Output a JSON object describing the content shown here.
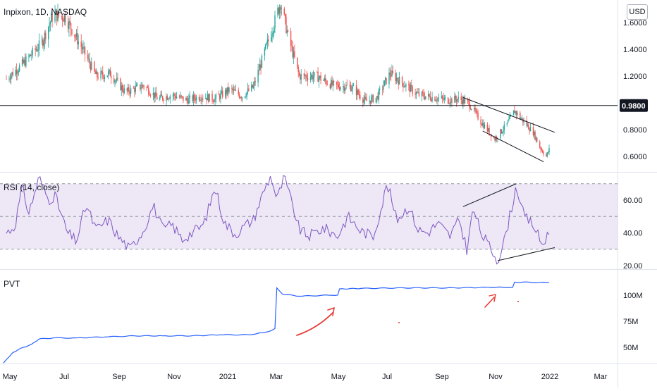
{
  "header": {
    "symbol": "Inpixon, 1D, NASDAQ",
    "currency": "USD"
  },
  "colors": {
    "up": "#26a69a",
    "down": "#ef5350",
    "rsi": "#7e57c2",
    "rsi_band": "#ede7f6",
    "pvt": "#2962ff",
    "axis_text": "#131722",
    "annotation_red": "#e53935"
  },
  "chart_data": [
    {
      "type": "candlestick",
      "title": "Inpixon, 1D, NASDAQ",
      "ylim": [
        0.5,
        1.7
      ],
      "y_ticks": [
        "1.6000",
        "1.4000",
        "1.2000",
        "0.8000",
        "0.6000"
      ],
      "horizontal_line": {
        "value": 0.98,
        "label": "0.9800"
      },
      "trendlines": [
        {
          "points": [
            [
              "2021-09-01",
              1.04
            ],
            [
              "2021-12-08",
              0.78
            ]
          ]
        },
        {
          "points": [
            [
              "2021-09-22",
              0.79
            ],
            [
              "2021-11-26",
              0.56
            ]
          ]
        }
      ],
      "anchors": [
        [
          "2020-05-01",
          1.18
        ],
        [
          "2020-05-20",
          1.3
        ],
        [
          "2020-06-08",
          1.45
        ],
        [
          "2020-06-20",
          1.66
        ],
        [
          "2020-07-03",
          1.64
        ],
        [
          "2020-07-20",
          1.42
        ],
        [
          "2020-08-05",
          1.2
        ],
        [
          "2020-08-20",
          1.22
        ],
        [
          "2020-09-05",
          1.08
        ],
        [
          "2020-09-25",
          1.13
        ],
        [
          "2020-10-10",
          1.03
        ],
        [
          "2020-10-25",
          1.06
        ],
        [
          "2020-11-10",
          1.02
        ],
        [
          "2020-11-25",
          1.05
        ],
        [
          "2020-12-10",
          1.03
        ],
        [
          "2020-12-26",
          1.1
        ],
        [
          "2021-01-08",
          1.05
        ],
        [
          "2021-01-20",
          1.12
        ],
        [
          "2021-02-01",
          1.38
        ],
        [
          "2021-02-10",
          1.57
        ],
        [
          "2021-02-18",
          1.75
        ],
        [
          "2021-02-26",
          1.5
        ],
        [
          "2021-03-10",
          1.2
        ],
        [
          "2021-03-28",
          1.2
        ],
        [
          "2021-04-15",
          1.13
        ],
        [
          "2021-05-05",
          1.12
        ],
        [
          "2021-05-20",
          1.01
        ],
        [
          "2021-06-01",
          1.04
        ],
        [
          "2021-06-15",
          1.22
        ],
        [
          "2021-06-28",
          1.15
        ],
        [
          "2021-07-15",
          1.06
        ],
        [
          "2021-08-01",
          1.04
        ],
        [
          "2021-08-15",
          1.02
        ],
        [
          "2021-08-28",
          1.03
        ],
        [
          "2021-09-08",
          0.99
        ],
        [
          "2021-09-20",
          0.86
        ],
        [
          "2021-10-05",
          0.73
        ],
        [
          "2021-10-18",
          0.84
        ],
        [
          "2021-10-26",
          0.94
        ],
        [
          "2021-11-05",
          0.86
        ],
        [
          "2021-11-15",
          0.78
        ],
        [
          "2021-11-22",
          0.67
        ],
        [
          "2021-11-29",
          0.6
        ],
        [
          "2021-12-02",
          0.65
        ]
      ]
    },
    {
      "type": "line",
      "title": "RSI (14, close)",
      "ylim": [
        20,
        75
      ],
      "y_ticks": [
        "60.00",
        "40.00",
        "20.00"
      ],
      "bands": {
        "upper": 70,
        "middle": 50,
        "lower": 30
      },
      "trendlines": [
        {
          "points": [
            [
              "2021-09-01",
              56
            ],
            [
              "2021-10-28",
              70
            ]
          ]
        },
        {
          "points": [
            [
              "2021-10-08",
              23
            ],
            [
              "2021-12-08",
              31
            ]
          ]
        }
      ],
      "anchors": [
        [
          "2020-05-01",
          40
        ],
        [
          "2020-05-10",
          44
        ],
        [
          "2020-05-18",
          68
        ],
        [
          "2020-05-25",
          52
        ],
        [
          "2020-06-05",
          74
        ],
        [
          "2020-06-15",
          60
        ],
        [
          "2020-06-22",
          63
        ],
        [
          "2020-07-05",
          40
        ],
        [
          "2020-07-15",
          35
        ],
        [
          "2020-07-25",
          57
        ],
        [
          "2020-08-05",
          42
        ],
        [
          "2020-08-18",
          48
        ],
        [
          "2020-08-28",
          38
        ],
        [
          "2020-09-10",
          30
        ],
        [
          "2020-09-25",
          42
        ],
        [
          "2020-10-05",
          57
        ],
        [
          "2020-10-15",
          42
        ],
        [
          "2020-10-25",
          45
        ],
        [
          "2020-11-05",
          36
        ],
        [
          "2020-11-15",
          40
        ],
        [
          "2020-11-28",
          45
        ],
        [
          "2020-12-10",
          68
        ],
        [
          "2020-12-20",
          46
        ],
        [
          "2021-01-01",
          39
        ],
        [
          "2021-01-10",
          44
        ],
        [
          "2021-01-20",
          48
        ],
        [
          "2021-02-01",
          67
        ],
        [
          "2021-02-08",
          75
        ],
        [
          "2021-02-14",
          60
        ],
        [
          "2021-02-22",
          74
        ],
        [
          "2021-03-01",
          60
        ],
        [
          "2021-03-10",
          42
        ],
        [
          "2021-03-20",
          38
        ],
        [
          "2021-04-05",
          43
        ],
        [
          "2021-04-20",
          38
        ],
        [
          "2021-05-01",
          50
        ],
        [
          "2021-05-15",
          41
        ],
        [
          "2021-05-28",
          38
        ],
        [
          "2021-06-05",
          54
        ],
        [
          "2021-06-12",
          70
        ],
        [
          "2021-06-22",
          48
        ],
        [
          "2021-07-05",
          56
        ],
        [
          "2021-07-15",
          42
        ],
        [
          "2021-07-25",
          40
        ],
        [
          "2021-08-05",
          46
        ],
        [
          "2021-08-18",
          38
        ],
        [
          "2021-08-28",
          48
        ],
        [
          "2021-09-05",
          30
        ],
        [
          "2021-09-12",
          55
        ],
        [
          "2021-09-20",
          40
        ],
        [
          "2021-10-01",
          30
        ],
        [
          "2021-10-08",
          23
        ],
        [
          "2021-10-15",
          35
        ],
        [
          "2021-10-22",
          53
        ],
        [
          "2021-10-28",
          69
        ],
        [
          "2021-11-05",
          50
        ],
        [
          "2021-11-15",
          45
        ],
        [
          "2021-11-25",
          32
        ],
        [
          "2021-12-02",
          42
        ]
      ]
    },
    {
      "type": "line",
      "title": "PVT",
      "ylim": [
        35,
        120
      ],
      "y_ticks": [
        "100M",
        "75M",
        "50M"
      ],
      "points": [
        [
          "2020-04-28",
          35
        ],
        [
          "2020-05-08",
          45
        ],
        [
          "2020-05-14",
          48
        ],
        [
          "2020-05-28",
          53
        ],
        [
          "2020-06-05",
          58
        ],
        [
          "2020-06-20",
          59
        ],
        [
          "2020-07-15",
          59
        ],
        [
          "2020-08-15",
          60
        ],
        [
          "2020-09-15",
          61
        ],
        [
          "2020-10-15",
          61
        ],
        [
          "2020-11-15",
          61
        ],
        [
          "2020-12-15",
          62
        ],
        [
          "2021-01-15",
          62
        ],
        [
          "2021-01-30",
          64
        ],
        [
          "2021-02-08",
          66
        ],
        [
          "2021-02-12",
          68
        ],
        [
          "2021-02-14",
          107
        ],
        [
          "2021-02-20",
          101
        ],
        [
          "2021-03-10",
          99
        ],
        [
          "2021-04-10",
          100
        ],
        [
          "2021-04-20",
          100
        ],
        [
          "2021-04-22",
          106
        ],
        [
          "2021-05-15",
          106.5
        ],
        [
          "2021-06-30",
          107
        ],
        [
          "2021-08-15",
          107
        ],
        [
          "2021-09-30",
          107.5
        ],
        [
          "2021-10-24",
          107.5
        ],
        [
          "2021-10-26",
          112.5
        ],
        [
          "2021-12-02",
          112
        ]
      ]
    }
  ],
  "x_axis": {
    "ticks": [
      "May",
      "Jul",
      "Sep",
      "Nov",
      "2021",
      "Mar",
      "May",
      "Jul",
      "Sep",
      "Nov",
      "2022",
      "Mar"
    ]
  }
}
